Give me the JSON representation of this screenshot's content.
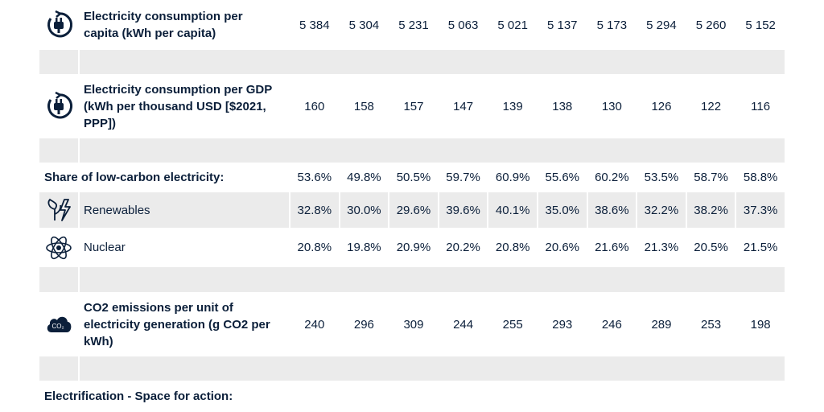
{
  "rows": [
    {
      "label": "Electricity consumption per capita (kWh per capita)",
      "values": [
        "5 384",
        "5 304",
        "5 231",
        "5 063",
        "5 021",
        "5 137",
        "5 173",
        "5 294",
        "5 260",
        "5 152"
      ]
    },
    {
      "label": "Electricity consumption per GDP (kWh per thousand USD [$2021, PPP])",
      "values": [
        "160",
        "158",
        "157",
        "147",
        "139",
        "138",
        "130",
        "126",
        "122",
        "116"
      ]
    },
    {
      "label": "Share of low-carbon electricity:",
      "values": [
        "53.6%",
        "49.8%",
        "50.5%",
        "59.7%",
        "60.9%",
        "55.6%",
        "60.2%",
        "53.5%",
        "58.7%",
        "58.8%"
      ]
    },
    {
      "label": "Renewables",
      "values": [
        "32.8%",
        "30.0%",
        "29.6%",
        "39.6%",
        "40.1%",
        "35.0%",
        "38.6%",
        "32.2%",
        "38.2%",
        "37.3%"
      ]
    },
    {
      "label": "Nuclear",
      "values": [
        "20.8%",
        "19.8%",
        "20.9%",
        "20.2%",
        "20.8%",
        "20.6%",
        "21.6%",
        "21.3%",
        "20.5%",
        "21.5%"
      ]
    },
    {
      "label": "CO2 emissions per unit of electricity generation (g CO2 per kWh)",
      "values": [
        "240",
        "296",
        "309",
        "244",
        "255",
        "293",
        "246",
        "289",
        "253",
        "198"
      ]
    },
    {
      "label": "Electrification - Space for action:"
    }
  ]
}
